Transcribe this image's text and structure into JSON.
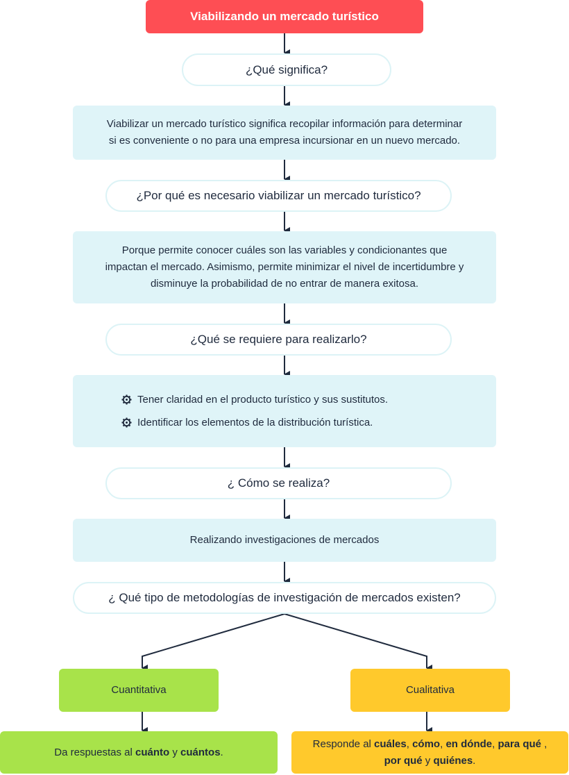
{
  "title": "Viabilizando un mercado turístico",
  "q1": "¿Qué significa?",
  "a1_line1": "Viabilizar un mercado turístico significa recopilar información para determinar",
  "a1_line2": "si es conveniente o no para una empresa incursionar en un nuevo mercado.",
  "q2": "¿Por qué es necesario viabilizar un mercado turístico?",
  "a2_line1": "Porque permite conocer cuáles son las variables y condicionantes que",
  "a2_line2": "impactan el mercado. Asimismo, permite minimizar el nivel de incertidumbre y",
  "a2_line3": "disminuye la probabilidad de no entrar de manera exitosa.",
  "q3": "¿Qué se requiere para realizarlo?",
  "a3_items": [
    "Tener claridad en el producto turístico y sus sustitutos.",
    "Identificar los elementos de la distribución turística."
  ],
  "q4": "¿ Cómo se realiza?",
  "a4": "Realizando investigaciones de mercados",
  "q5": "¿ Qué tipo de metodologías de investigación de mercados existen?",
  "cuantitativa": {
    "label": "Cuantitativa",
    "desc_prefix": "Da respuestas al ",
    "desc_b1": "cuánto",
    "desc_mid": " y ",
    "desc_b2": "cuántos",
    "desc_end": "."
  },
  "cualitativa": {
    "label": "Cualitativa",
    "desc_prefix": "Responde al ",
    "b1": "cuáles",
    "s1": ", ",
    "b2": "cómo",
    "s2": ", ",
    "b3": "en dónde",
    "s3": ", ",
    "b4": "para qué",
    "s4": " ,",
    "b5": "por qué",
    "s5": " y ",
    "b6": "quiénes",
    "s6": "."
  },
  "colors": {
    "title": "#fe4e54",
    "info": "#dff4f8",
    "pill_border": "#dcf3f6",
    "green": "#a8e34a",
    "yellow": "#ffc92c",
    "line": "#1f2a3d"
  }
}
